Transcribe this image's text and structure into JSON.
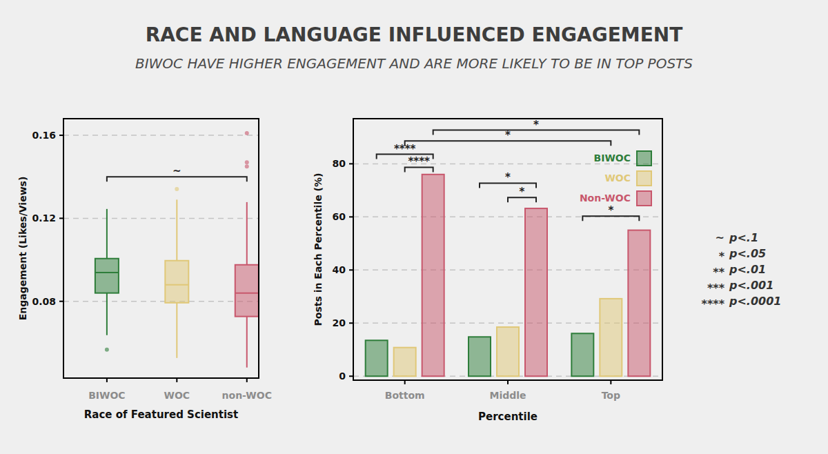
{
  "header": {
    "title": "RACE AND LANGUAGE INFLUENCED ENGAGEMENT",
    "subtitle": "BIWOC HAVE HIGHER ENGAGEMENT AND ARE MORE LIKELY TO BE IN TOP POSTS"
  },
  "chart_data": [
    {
      "type": "box",
      "x_label": "Race of Featured Scientist",
      "y_label": "Engagement (Likes/Views)",
      "categories": [
        "BIWOC",
        "WOC",
        "non-WOC"
      ],
      "boxes": [
        {
          "color": "#2e7d3a",
          "low": 0.0637,
          "q1": 0.084,
          "median": 0.0939,
          "q3": 0.1006,
          "high": 0.1245,
          "outliers": [
            0.0567
          ]
        },
        {
          "color": "#e0c878",
          "low": 0.0527,
          "q1": 0.0793,
          "median": 0.088,
          "q3": 0.0996,
          "high": 0.129,
          "outliers": [
            0.1341
          ]
        },
        {
          "color": "#c8576c",
          "low": 0.0481,
          "q1": 0.0727,
          "median": 0.084,
          "q3": 0.0976,
          "high": 0.1278,
          "outliers": [
            0.161,
            0.147,
            0.145
          ]
        }
      ],
      "ylim": [
        0.043,
        0.168
      ],
      "yticks": [
        0.08,
        0.12,
        0.16
      ],
      "grid": true,
      "annotations": [
        {
          "from": 0,
          "to": 2,
          "y": 0.14,
          "label": "~"
        }
      ]
    },
    {
      "type": "bar",
      "x_label": "Percentile",
      "y_label": "Posts in Each Percentile (%)",
      "categories": [
        "Bottom",
        "Middle",
        "Top"
      ],
      "series": [
        {
          "name": "BIWOC",
          "color": "#2e7d3a",
          "values": [
            13.5,
            14.8,
            16.1
          ]
        },
        {
          "name": "WOC",
          "color": "#e0c878",
          "values": [
            10.8,
            18.5,
            29.2
          ]
        },
        {
          "name": "Non-WOC",
          "color": "#c8576c",
          "values": [
            76,
            63.2,
            55
          ]
        }
      ],
      "ylim": [
        -1.5,
        97
      ],
      "yticks": [
        0,
        20,
        40,
        60,
        80
      ],
      "grid": true,
      "legend": "upper right",
      "annotations": [
        {
          "from": [
            0,
            0
          ],
          "to": [
            0,
            2
          ],
          "y": 83.6,
          "label": "****"
        },
        {
          "from": [
            0,
            1
          ],
          "to": [
            0,
            2
          ],
          "y": 78.7,
          "label": "****"
        },
        {
          "from": [
            1,
            0
          ],
          "to": [
            1,
            2
          ],
          "y": 72.7,
          "label": "*"
        },
        {
          "from": [
            1,
            1
          ],
          "to": [
            1,
            2
          ],
          "y": 67.3,
          "label": "*"
        },
        {
          "from": [
            2,
            0
          ],
          "to": [
            2,
            2
          ],
          "y": 60.3,
          "label": "*"
        },
        {
          "from": [
            0,
            1
          ],
          "to": [
            2,
            1
          ],
          "y": 88.6,
          "label": "*"
        },
        {
          "from": [
            0,
            2
          ],
          "to": [
            2,
            2
          ],
          "y": 92.7,
          "label": "*"
        }
      ]
    }
  ],
  "significance_key": [
    {
      "symbol": "~",
      "label": "p<.1"
    },
    {
      "symbol": "*",
      "label": "p<.05"
    },
    {
      "symbol": "**",
      "label": "p<.01"
    },
    {
      "symbol": "***",
      "label": "p<.001"
    },
    {
      "symbol": "****",
      "label": "p<.0001"
    }
  ]
}
